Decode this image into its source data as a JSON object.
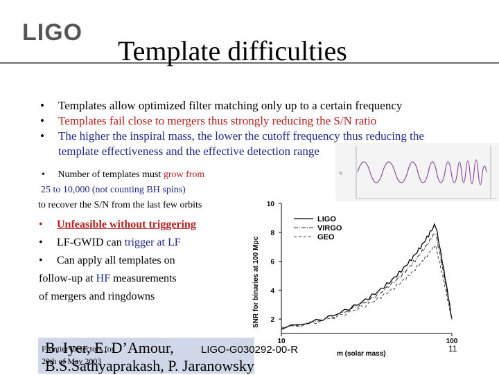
{
  "header": {
    "logo": "LIGO",
    "title": "Template difficulties"
  },
  "bullets": [
    "Templates allow optimized filter matching only up to a certain frequency",
    "Templates fail close to mergers thus strongly reducing the S/N ratio",
    "The higher the inspiral mass, the lower the cutoff frequency thus reducing the template effectiveness and the effective detection range"
  ],
  "bullet_marker": "•",
  "templates_note": {
    "line1_prefix": "Number of templates must ",
    "line1_highlight": "grow from",
    "line2": "25 to 10,000 (not counting BH spins)",
    "line3": "to recover the S/N from the last few orbits"
  },
  "points": {
    "p1": "Unfeasible without triggering",
    "p2_prefix": "LF-GWID can ",
    "p2_highlight": "trigger at LF",
    "p3": "Can apply all templates on",
    "p3_cont_prefix": "follow-up at ",
    "p3_cont_highlight": "HF",
    "p3_cont_suffix": " measurements",
    "p3_cont2": "of mergers and ringdowns"
  },
  "footer": {
    "names_line1": "B. Iyer, E. D’Amour,",
    "names_line2": "B.S.Sathyaprakash, P. Jaranowsky",
    "small_line1": "Frontier Detectors for",
    "small_line2": "20th of May 2003",
    "doc_id": "LIGO-G030292-00-R",
    "page": "11"
  },
  "colors": {
    "accent_blue": "#1f2a85",
    "accent_red": "#b22222",
    "footer_bg": "#cfd7e8"
  },
  "chart_data": {
    "type": "line",
    "ylabel": "SNR for binaries at 100 Mpc",
    "xlabel": "m (solar mass)",
    "y_ticks": [
      "10",
      "8",
      "6",
      "4",
      "2"
    ],
    "x_tick_labels": [
      "10",
      "100"
    ],
    "legend_position": "top-right",
    "series": [
      {
        "name": "LIGO",
        "style": "solid"
      },
      {
        "name": "VIRGO",
        "style": "dash-dot"
      },
      {
        "name": "GEO",
        "style": "dashed"
      }
    ],
    "ylim": [
      1,
      10
    ],
    "xlim": [
      10,
      100
    ]
  }
}
